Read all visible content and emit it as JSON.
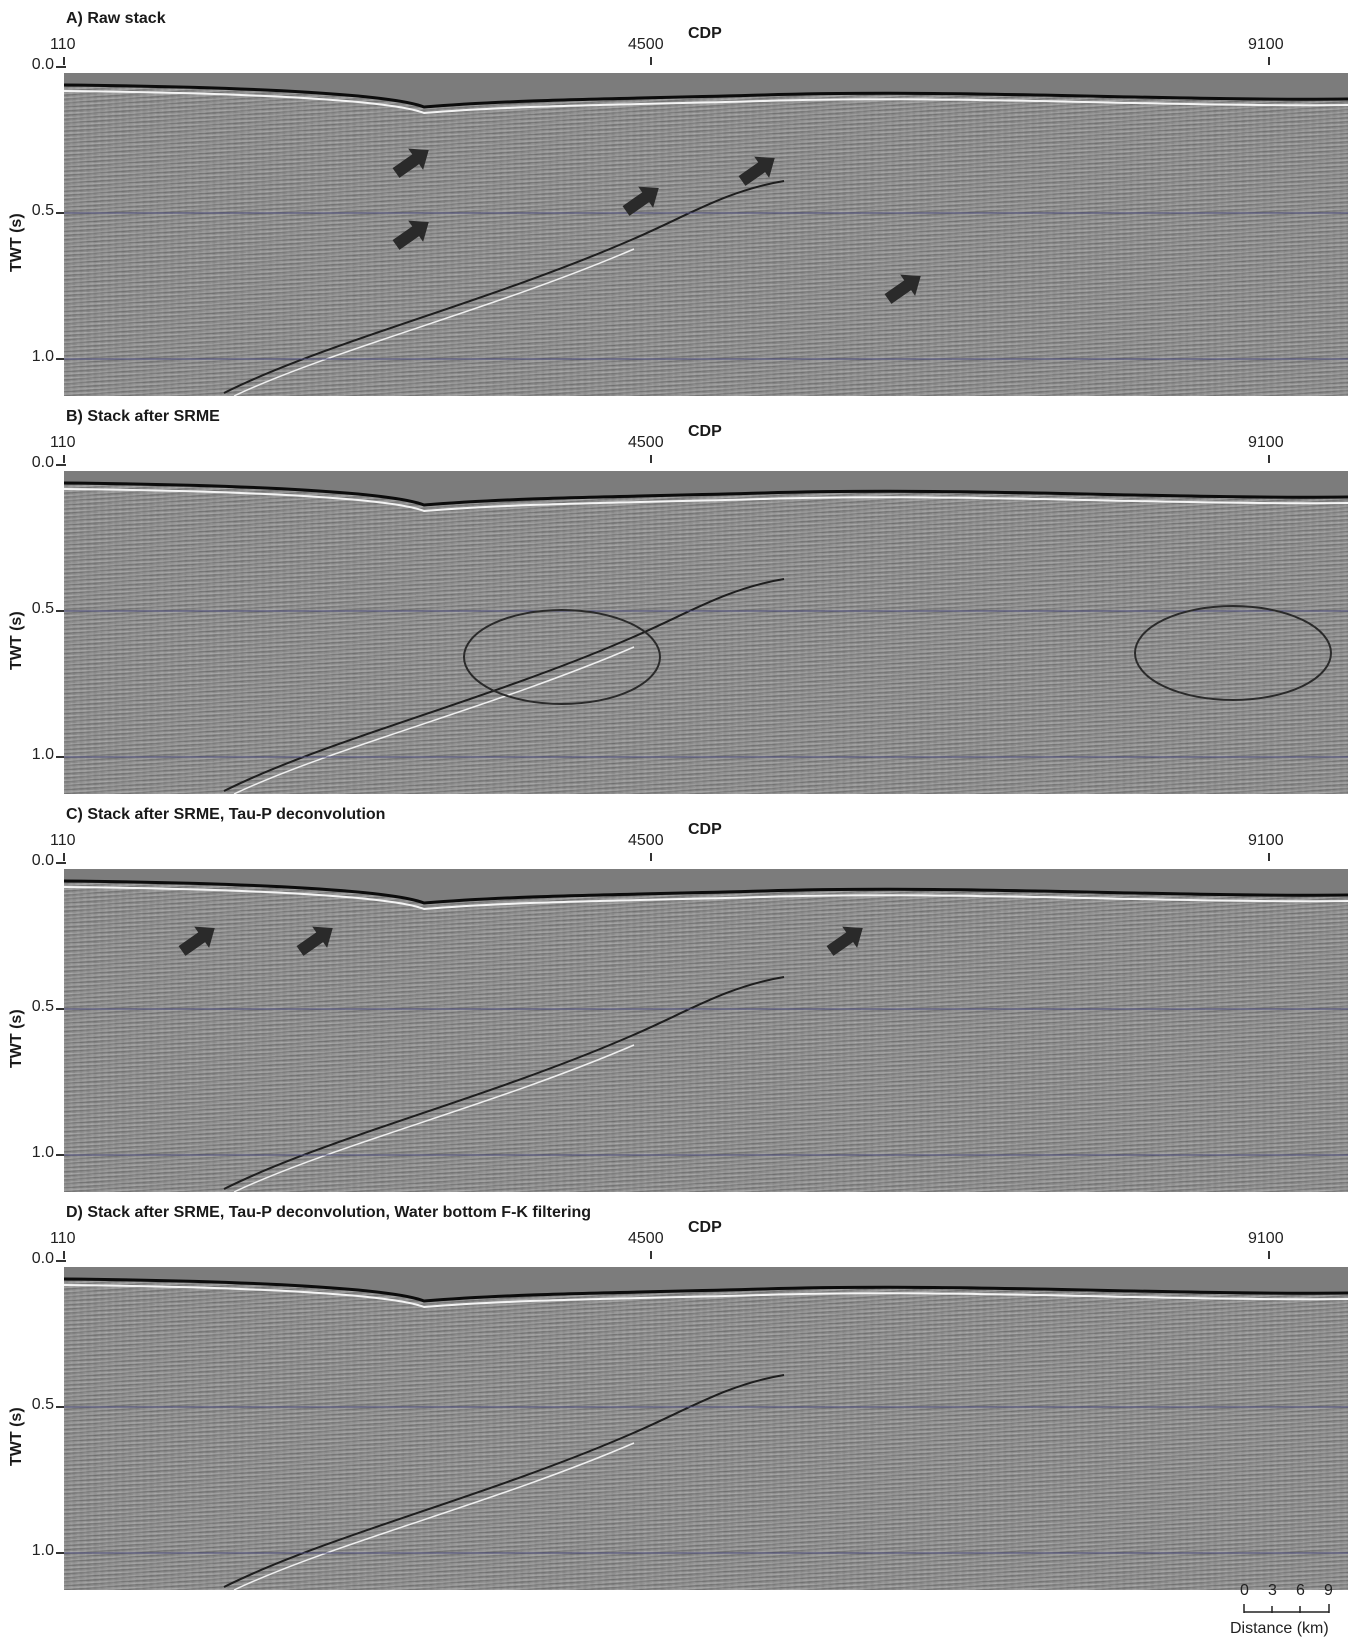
{
  "figure": {
    "x_axis_title": "CDP",
    "y_axis_title": "TWT (s)",
    "cdp_ticks": [
      "110",
      "4500",
      "9100"
    ],
    "twt_ticks": [
      "0.0",
      "0.5",
      "1.0"
    ],
    "panels": [
      {
        "title": "A) Raw stack",
        "annotation": "arrows"
      },
      {
        "title": "B) Stack after SRME",
        "annotation": "ellipses"
      },
      {
        "title": "C) Stack after SRME, Tau-P deconvolution",
        "annotation": "arrows"
      },
      {
        "title": "D) Stack after SRME, Tau-P deconvolution, Water bottom F-K filtering",
        "annotation": "none"
      }
    ],
    "scale": {
      "values": [
        "0",
        "3",
        "6",
        "9"
      ],
      "label": "Distance (km)"
    },
    "colors": {
      "section_background": "#8d8d8d",
      "water_column": "#7c7c7c",
      "annotation": "#2a2a2a",
      "horizon_guides": "#4a4a7a"
    }
  }
}
